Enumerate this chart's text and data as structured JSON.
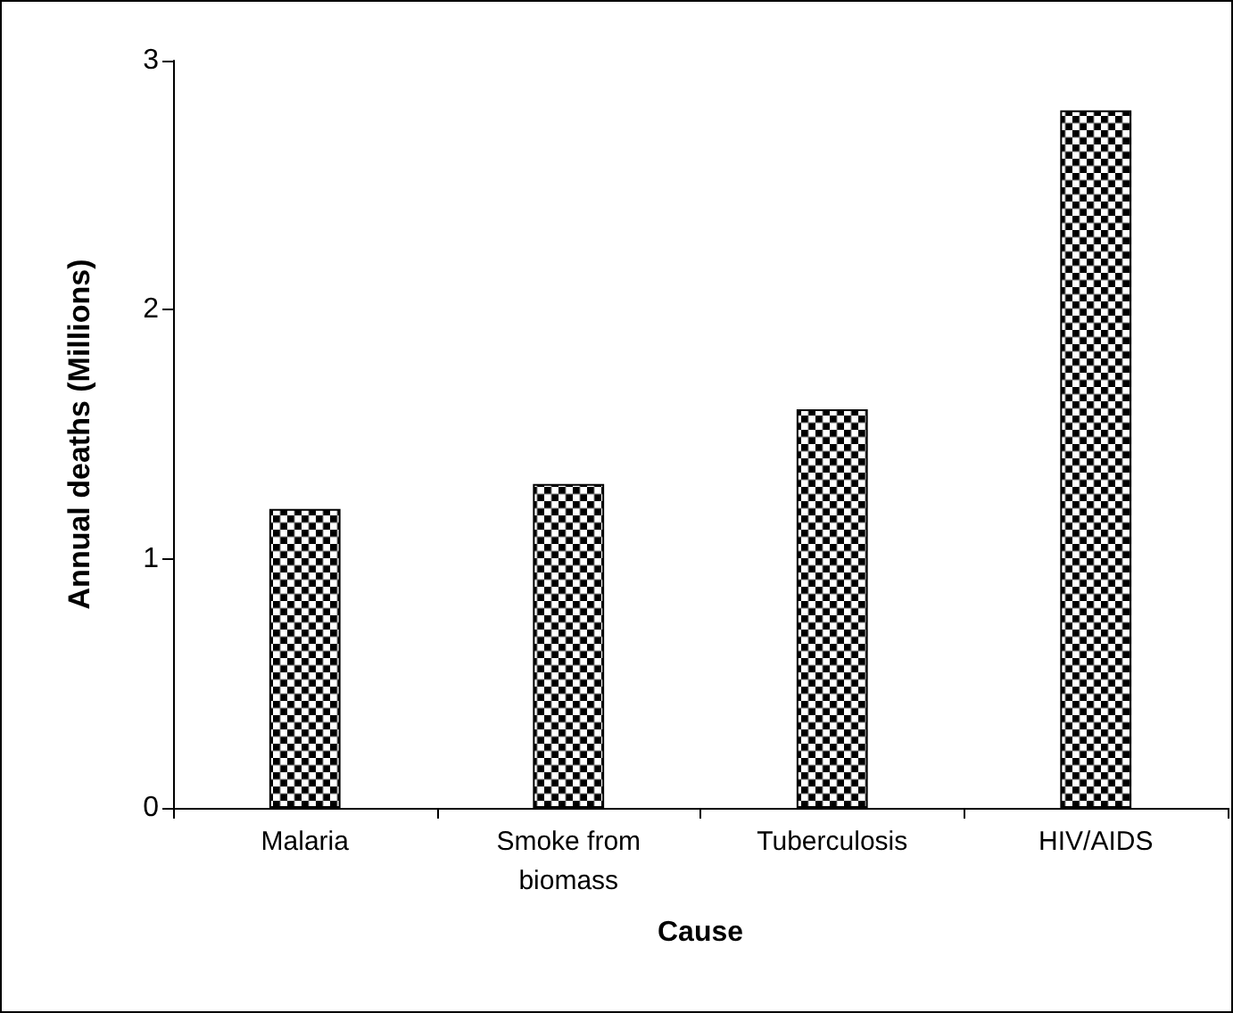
{
  "chart_data": {
    "type": "bar",
    "xlabel": "Cause",
    "ylabel": "Annual deaths (Millions)",
    "categories": [
      "Malaria",
      "Smoke from\nbiomass",
      "Tuberculosis",
      "HIV/AIDS"
    ],
    "values": [
      1.2,
      1.3,
      1.6,
      2.8
    ],
    "color": "#000000",
    "ylim": [
      0,
      3
    ],
    "yticks": [
      0,
      1,
      2,
      3
    ],
    "grid": false
  }
}
